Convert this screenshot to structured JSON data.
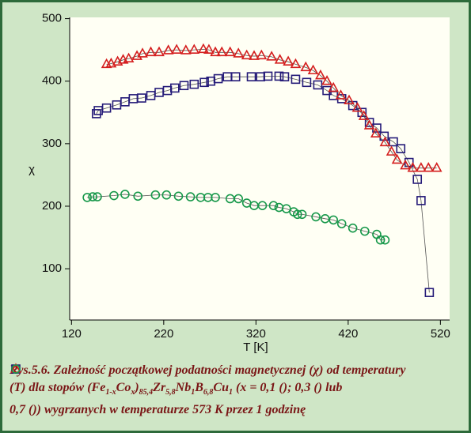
{
  "chart_data": {
    "type": "scatter",
    "xlabel": "T [K]",
    "ylabel": "χ",
    "xlim": [
      118,
      530
    ],
    "xticks": [
      120,
      220,
      320,
      420,
      520
    ],
    "ylim": [
      18,
      502
    ],
    "yticks": [
      100,
      200,
      300,
      400,
      500
    ],
    "series": [
      {
        "marker": "square",
        "color": "#241a78",
        "x": [
          147,
          149,
          158,
          169,
          178,
          187,
          196,
          206,
          215,
          224,
          232,
          242,
          253,
          264,
          271,
          279,
          289,
          298,
          315,
          325,
          333,
          345,
          351,
          363,
          375,
          387,
          397,
          404,
          413,
          425,
          435,
          443,
          451,
          459,
          469,
          477,
          486,
          495,
          499,
          508
        ],
        "values": [
          348,
          353,
          357,
          362,
          367,
          372,
          373,
          377,
          382,
          385,
          389,
          393,
          395,
          398,
          400,
          404,
          407,
          407,
          407,
          407,
          408,
          408,
          407,
          403,
          398,
          394,
          385,
          377,
          372,
          361,
          350,
          334,
          325,
          312,
          303,
          292,
          270,
          243,
          209,
          62
        ]
      },
      {
        "marker": "triangle",
        "color": "#d41e1e",
        "x": [
          158,
          163,
          170,
          176,
          182,
          191,
          197,
          206,
          215,
          225,
          234,
          244,
          253,
          263,
          269,
          276,
          283,
          292,
          301,
          310,
          318,
          326,
          337,
          346,
          355,
          363,
          374,
          382,
          390,
          397,
          404,
          412,
          421,
          430,
          437,
          443,
          450,
          460,
          467,
          473,
          482,
          490,
          499,
          507,
          516
        ],
        "values": [
          427,
          428,
          431,
          434,
          436,
          440,
          444,
          446,
          446,
          449,
          450,
          449,
          450,
          451,
          450,
          446,
          446,
          446,
          444,
          441,
          440,
          441,
          439,
          434,
          431,
          427,
          422,
          417,
          409,
          400,
          389,
          377,
          369,
          357,
          344,
          329,
          316,
          302,
          287,
          274,
          265,
          261,
          261,
          261,
          261
        ]
      },
      {
        "marker": "circle",
        "color": "#17984a",
        "x": [
          137,
          143,
          148,
          166,
          178,
          192,
          211,
          223,
          236,
          249,
          260,
          268,
          276,
          292,
          301,
          310,
          318,
          327,
          339,
          345,
          353,
          361,
          365,
          370,
          385,
          395,
          404,
          413,
          425,
          438,
          451,
          455,
          460
        ],
        "values": [
          214,
          215,
          215,
          217,
          219,
          216,
          218,
          218,
          216,
          215,
          214,
          214,
          214,
          212,
          212,
          205,
          201,
          201,
          201,
          198,
          196,
          191,
          187,
          187,
          183,
          180,
          178,
          172,
          165,
          160,
          155,
          146,
          146
        ]
      }
    ]
  },
  "caption": {
    "lines": [
      [
        [
          "Rys.5.6. Zależność początkowej podatności magnetycznej (χ) od temperatury"
        ]
      ],
      [
        [
          "(T) dla stopów (Fe",
          {
            "sub": "1-x"
          },
          "Co",
          {
            "sub": "x"
          },
          ")",
          {
            "sub": "85,4"
          },
          "Zr",
          {
            "sub": "5,8"
          },
          "Nb",
          {
            "sub": "1"
          },
          "B",
          {
            "sub": "6,8"
          },
          "Cu",
          {
            "sub": "1"
          },
          " (x = 0,1 ("
        ],
        [
          "); 0,3 ("
        ],
        [
          ") lub"
        ]
      ],
      [
        [
          "0,7 ("
        ],
        [
          ")) wygrzanych w temperaturze 573 K przez 1 godzinę"
        ]
      ]
    ]
  }
}
